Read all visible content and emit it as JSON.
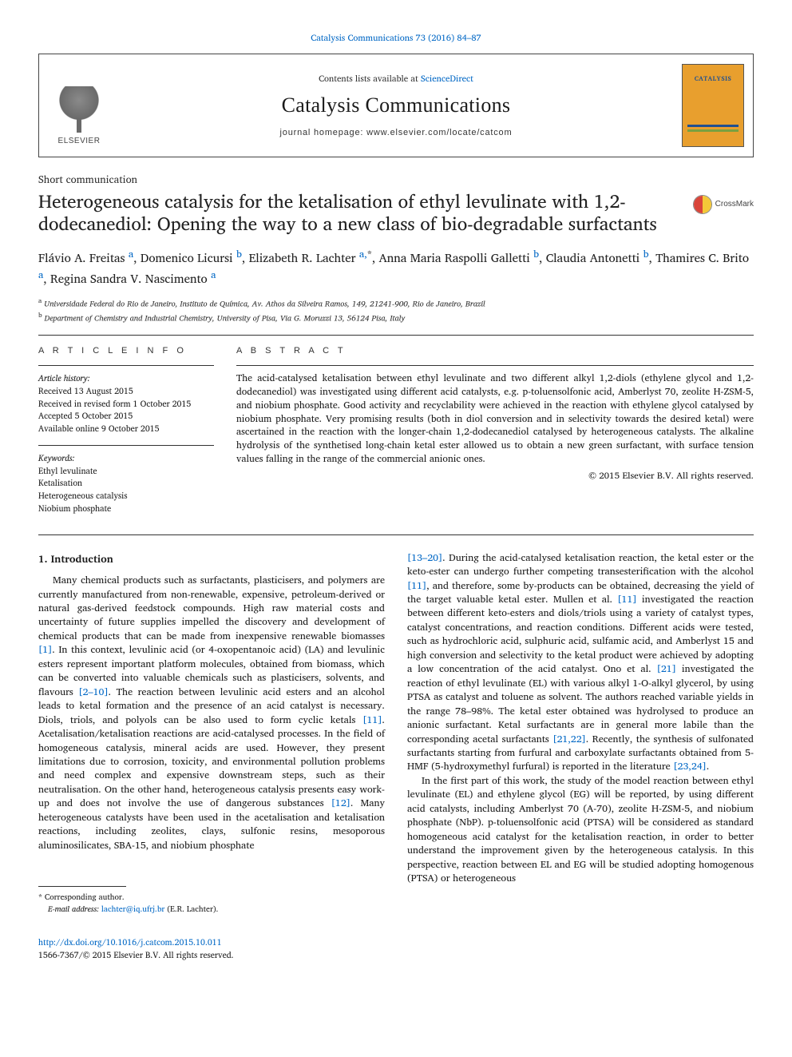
{
  "top_citation": "Catalysis Communications 73 (2016) 84–87",
  "header": {
    "contents_prefix": "Contents lists available at ",
    "contents_link": "ScienceDirect",
    "journal_name": "Catalysis Communications",
    "homepage_label": "journal homepage: www.elsevier.com/locate/catcom",
    "publisher_word": "ELSEVIER",
    "cover_title": "CATALYSIS"
  },
  "article_type": "Short communication",
  "title": "Heterogeneous catalysis for the ketalisation of ethyl levulinate with 1,2-dodecanediol: Opening the way to a new class of bio-degradable surfactants",
  "crossmark": "CrossMark",
  "authors_html": "Flávio A. Freitas <a>a</a>, Domenico Licursi <a>b</a>, Elizabeth R. Lachter <a>a,</a>*, Anna Maria Raspolli Galletti <a>b</a>, Claudia Antonetti <a>b</a>, Thamires C. Brito <a>a</a>, Regina Sandra V. Nascimento <a>a</a>",
  "authors": {
    "a1": "Flávio A. Freitas",
    "a1_sup": "a",
    "a2": "Domenico Licursi",
    "a2_sup": "b",
    "a3": "Elizabeth R. Lachter",
    "a3_sup": "a,",
    "a3_star": "*",
    "a4": "Anna Maria Raspolli Galletti",
    "a4_sup": "b",
    "a5": "Claudia Antonetti",
    "a5_sup": "b",
    "a6": "Thamires C. Brito",
    "a6_sup": "a",
    "a7": "Regina Sandra V. Nascimento",
    "a7_sup": "a"
  },
  "affiliations": {
    "a_sup": "a",
    "a": " Universidade Federal do Rio de Janeiro, Instituto de Química, Av. Athos da Silveira Ramos, 149, 21241-900, Rio de Janeiro, Brazil",
    "b_sup": "b",
    "b": " Department of Chemistry and Industrial Chemistry, University of Pisa, Via G. Moruzzi 13, 56124 Pisa, Italy"
  },
  "info": {
    "heading": "A R T I C L E  I N F O",
    "history_label": "Article history:",
    "received": "Received 13 August 2015",
    "revised": "Received in revised form 1 October 2015",
    "accepted": "Accepted 5 October 2015",
    "online": "Available online 9 October 2015",
    "keywords_label": "Keywords:",
    "kw1": "Ethyl levulinate",
    "kw2": "Ketalisation",
    "kw3": "Heterogeneous catalysis",
    "kw4": "Niobium phosphate"
  },
  "abstract": {
    "heading": "A B S T R A C T",
    "text": "The acid-catalysed ketalisation between ethyl levulinate and two different alkyl 1,2-diols (ethylene glycol and 1,2-dodecanediol) was investigated using different acid catalysts, e.g. p-toluensolfonic acid, Amberlyst 70, zeolite H-ZSM-5, and niobium phosphate. Good activity and recyclability were achieved in the reaction with ethylene glycol catalysed by niobium phosphate. Very promising results (both in diol conversion and in selectivity towards the desired ketal) were ascertained in the reaction with the longer-chain 1,2-dodecanediol catalysed by heterogeneous catalysts. The alkaline hydrolysis of the synthetised long-chain ketal ester allowed us to obtain a new green surfactant, with surface tension values falling in the range of the commercial anionic ones.",
    "copyright": "© 2015 Elsevier B.V. All rights reserved."
  },
  "section1_heading": "1. Introduction",
  "col_left": {
    "p1a": "Many chemical products such as surfactants, plasticisers, and polymers are currently manufactured from non-renewable, expensive, petroleum-derived or natural gas-derived feedstock compounds. High raw material costs and uncertainty of future supplies impelled the discovery and development of chemical products that can be made from inexpensive renewable biomasses ",
    "ref1": "[1]",
    "p1b": ". In this context, levulinic acid (or 4-oxopentanoic acid) (LA) and levulinic esters represent important platform molecules, obtained from biomass, which can be converted into valuable chemicals such as plasticisers, solvents, and flavours ",
    "ref2": "[2–10]",
    "p1c": ". The reaction between levulinic acid esters and an alcohol leads to ketal formation and the presence of an acid catalyst is necessary. Diols, triols, and polyols can be also used to form cyclic ketals ",
    "ref3": "[11]",
    "p1d": ". Acetalisation/ketalisation reactions are acid-catalysed processes. In the field of homogeneous catalysis, mineral acids are used. However, they present limitations due to corrosion, toxicity, and environmental pollution problems and need complex and expensive downstream steps, such as their neutralisation. On the other hand, heterogeneous catalysis presents easy work-up and does not involve the use of dangerous substances ",
    "ref4": "[12]",
    "p1e": ". Many heterogeneous catalysts have been used in the acetalisation and ketalisation reactions, including zeolites, clays, sulfonic resins, mesoporous aluminosilicates, SBA-15, and niobium phosphate"
  },
  "col_right": {
    "ref5": "[13–20]",
    "p2a": ". During the acid-catalysed ketalisation reaction, the ketal ester or the keto-ester can undergo further competing transesterification with the alcohol ",
    "ref6": "[11]",
    "p2b": ", and therefore, some by-products can be obtained, decreasing the yield of the target valuable ketal ester. Mullen et al. ",
    "ref7": "[11]",
    "p2c": " investigated the reaction between different keto-esters and diols/triols using a variety of catalyst types, catalyst concentrations, and reaction conditions. Different acids were tested, such as hydrochloric acid, sulphuric acid, sulfamic acid, and Amberlyst 15 and high conversion and selectivity to the ketal product were achieved by adopting a low concentration of the acid catalyst. Ono et al. ",
    "ref8": "[21]",
    "p2d": " investigated the reaction of ethyl levulinate (EL) with various alkyl 1-O-alkyl glycerol, by using PTSA as catalyst and toluene as solvent. The authors reached variable yields in the range 78–98%. The ketal ester obtained was hydrolysed to produce an anionic surfactant. Ketal surfactants are in general more labile than the corresponding acetal surfactants ",
    "ref9": "[21,22]",
    "p2e": ". Recently, the synthesis of sulfonated surfactants starting from furfural and carboxylate surfactants obtained from 5-HMF (5-hydroxymethyl furfural) is reported in the literature ",
    "ref10": "[23,24]",
    "p2f": ".",
    "p3": "In the first part of this work, the study of the model reaction between ethyl levulinate (EL) and ethylene glycol (EG) will be reported, by using different acid catalysts, including Amberlyst 70 (A-70), zeolite H-ZSM-5, and niobium phosphate (NbP). p-toluensolfonic acid (PTSA) will be considered as standard homogeneous acid catalyst for the ketalisation reaction, in order to better understand the improvement given by the heterogeneous catalysis. In this perspective, reaction between EL and EG will be studied adopting homogenous (PTSA) or heterogeneous"
  },
  "corresponding": {
    "star": "*",
    "label": " Corresponding author.",
    "email_label": "E-mail address: ",
    "email": "lachter@iq.ufrj.br",
    "email_suffix": " (E.R. Lachter)."
  },
  "bottom": {
    "doi": "http://dx.doi.org/10.1016/j.catcom.2015.10.011",
    "issn_copyright": "1566-7367/© 2015 Elsevier B.V. All rights reserved."
  },
  "colors": {
    "link": "#0067c5",
    "text": "#1a1a1a",
    "cover_bg": "#e89f2e",
    "crossmark_red": "#d9453a",
    "crossmark_yellow": "#f4c838"
  }
}
